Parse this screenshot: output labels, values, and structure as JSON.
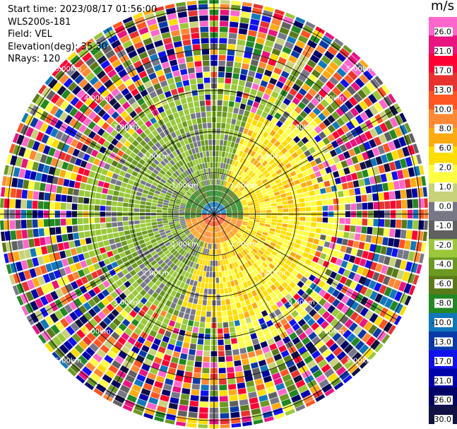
{
  "header": {
    "start_time": "Start time: 2023/08/17 01:56:00",
    "instrument": "WLS200s-181",
    "field": "Field: VEL",
    "elevation": "Elevation(deg): 35.30",
    "nrays": "NRays: 120"
  },
  "ppi": {
    "range_rings_km": [
      1.0,
      2.0,
      3.0,
      4.0,
      5.0
    ],
    "ring_labels": [
      "1.00km",
      "2.00km",
      "3.00km",
      "4.00km",
      "5.00km"
    ],
    "nrays": 120,
    "max_range_km": 5.2
  },
  "colorbar": {
    "unit": "m/s",
    "tick_labels": [
      "26.0",
      "21.0",
      "17.0",
      "13.0",
      "10.0",
      "8.0",
      "6.0",
      "2.0",
      "1.0",
      "0.0",
      "-1.0",
      "-2.0",
      "-4.0",
      "-6.0",
      "-8.0",
      "-10.0",
      "-13.0",
      "-17.0",
      "-21.0",
      "-26.0",
      "-30.0"
    ],
    "colors": [
      "#ff66cc",
      "#e8147f",
      "#ff0033",
      "#e8322f",
      "#ff5522",
      "#ff8833",
      "#ffaa11",
      "#ffdd00",
      "#ffff44",
      "#c8d27a",
      "#777788",
      "#606060",
      "#9ac83a",
      "#6b9922",
      "#5a7a1a",
      "#228822",
      "#1177bb",
      "#0a3aa8",
      "#1111ee",
      "#0000aa",
      "#000066",
      "#111144"
    ]
  }
}
